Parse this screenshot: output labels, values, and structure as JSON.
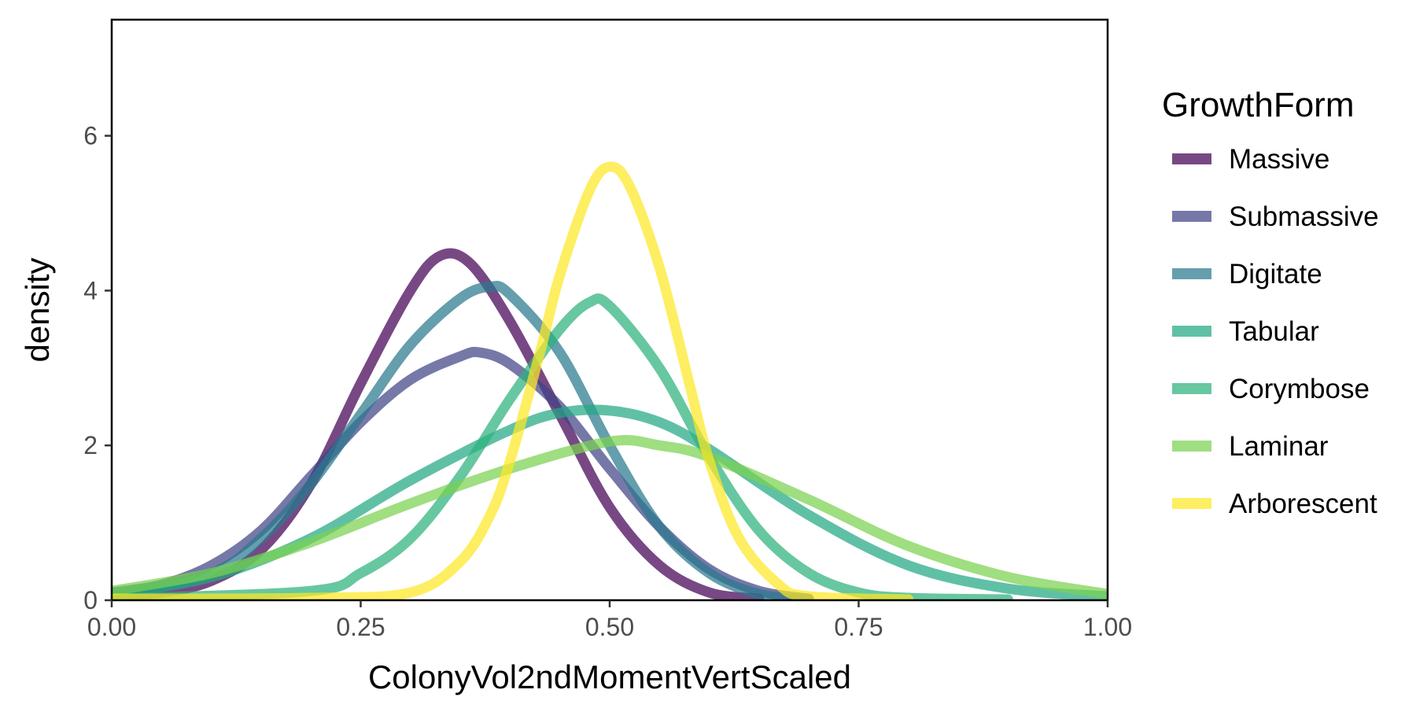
{
  "chart_data": {
    "type": "line",
    "xlabel": "ColonyVol2ndMomentVertScaled",
    "ylabel": "density",
    "xlim": [
      0,
      1
    ],
    "ylim": [
      0,
      7.5
    ],
    "x_ticks": [
      0,
      0.25,
      0.5,
      0.75,
      1
    ],
    "x_tick_labels": [
      "0.00",
      "0.25",
      "0.50",
      "0.75",
      "1.00"
    ],
    "y_ticks": [
      0,
      2,
      4,
      6
    ],
    "y_tick_labels": [
      "0",
      "2",
      "4",
      "6"
    ],
    "grid": false,
    "legend": {
      "title": "GrowthForm",
      "position": "right"
    },
    "series": [
      {
        "name": "Massive",
        "color": "#440154",
        "x": [
          0,
          0.05,
          0.1,
          0.15,
          0.2,
          0.25,
          0.3,
          0.33,
          0.36,
          0.4,
          0.45,
          0.5,
          0.55,
          0.6,
          0.65
        ],
        "y": [
          0.05,
          0.1,
          0.25,
          0.65,
          1.5,
          2.8,
          4.0,
          4.45,
          4.35,
          3.6,
          2.4,
          1.2,
          0.45,
          0.1,
          0.02
        ]
      },
      {
        "name": "Submassive",
        "color": "#414487",
        "x": [
          0,
          0.05,
          0.1,
          0.15,
          0.2,
          0.25,
          0.3,
          0.35,
          0.37,
          0.4,
          0.45,
          0.5,
          0.55,
          0.6,
          0.65,
          0.7
        ],
        "y": [
          0.1,
          0.2,
          0.45,
          0.9,
          1.6,
          2.3,
          2.85,
          3.15,
          3.2,
          3.05,
          2.5,
          1.7,
          0.95,
          0.4,
          0.12,
          0.02
        ]
      },
      {
        "name": "Digitate",
        "color": "#2A788E",
        "x": [
          0,
          0.1,
          0.15,
          0.2,
          0.25,
          0.3,
          0.35,
          0.38,
          0.4,
          0.45,
          0.5,
          0.55,
          0.6,
          0.65,
          0.7
        ],
        "y": [
          0.05,
          0.35,
          0.8,
          1.5,
          2.4,
          3.3,
          3.9,
          4.05,
          3.95,
          3.2,
          2.0,
          0.95,
          0.35,
          0.08,
          0.01
        ]
      },
      {
        "name": "Tabular",
        "color": "#22A884",
        "x": [
          0,
          0.1,
          0.2,
          0.3,
          0.4,
          0.45,
          0.5,
          0.55,
          0.6,
          0.7,
          0.8,
          0.9,
          1.0
        ],
        "y": [
          0.08,
          0.3,
          0.8,
          1.55,
          2.2,
          2.42,
          2.45,
          2.3,
          1.95,
          1.1,
          0.45,
          0.15,
          0.05
        ]
      },
      {
        "name": "Corymbose",
        "color": "#2DB27D",
        "x": [
          0,
          0.2,
          0.25,
          0.3,
          0.35,
          0.4,
          0.45,
          0.48,
          0.5,
          0.55,
          0.6,
          0.65,
          0.7,
          0.75,
          0.8,
          0.9
        ],
        "y": [
          0.02,
          0.12,
          0.35,
          0.8,
          1.6,
          2.6,
          3.5,
          3.85,
          3.8,
          3.0,
          1.85,
          0.9,
          0.35,
          0.1,
          0.03,
          0.01
        ]
      },
      {
        "name": "Laminar",
        "color": "#7AD151",
        "x": [
          0,
          0.1,
          0.2,
          0.3,
          0.4,
          0.5,
          0.55,
          0.6,
          0.7,
          0.8,
          0.9,
          1.0
        ],
        "y": [
          0.12,
          0.35,
          0.75,
          1.25,
          1.7,
          2.05,
          2.0,
          1.85,
          1.3,
          0.7,
          0.3,
          0.08
        ]
      },
      {
        "name": "Arborescent",
        "color": "#FDE725",
        "x": [
          0,
          0.2,
          0.3,
          0.35,
          0.38,
          0.4,
          0.43,
          0.45,
          0.48,
          0.5,
          0.52,
          0.55,
          0.58,
          0.6,
          0.63,
          0.67,
          0.7,
          0.8
        ],
        "y": [
          0.02,
          0.03,
          0.1,
          0.5,
          1.1,
          1.8,
          3.2,
          4.2,
          5.3,
          5.6,
          5.35,
          4.3,
          2.8,
          1.8,
          0.8,
          0.2,
          0.05,
          0.01
        ]
      }
    ]
  }
}
